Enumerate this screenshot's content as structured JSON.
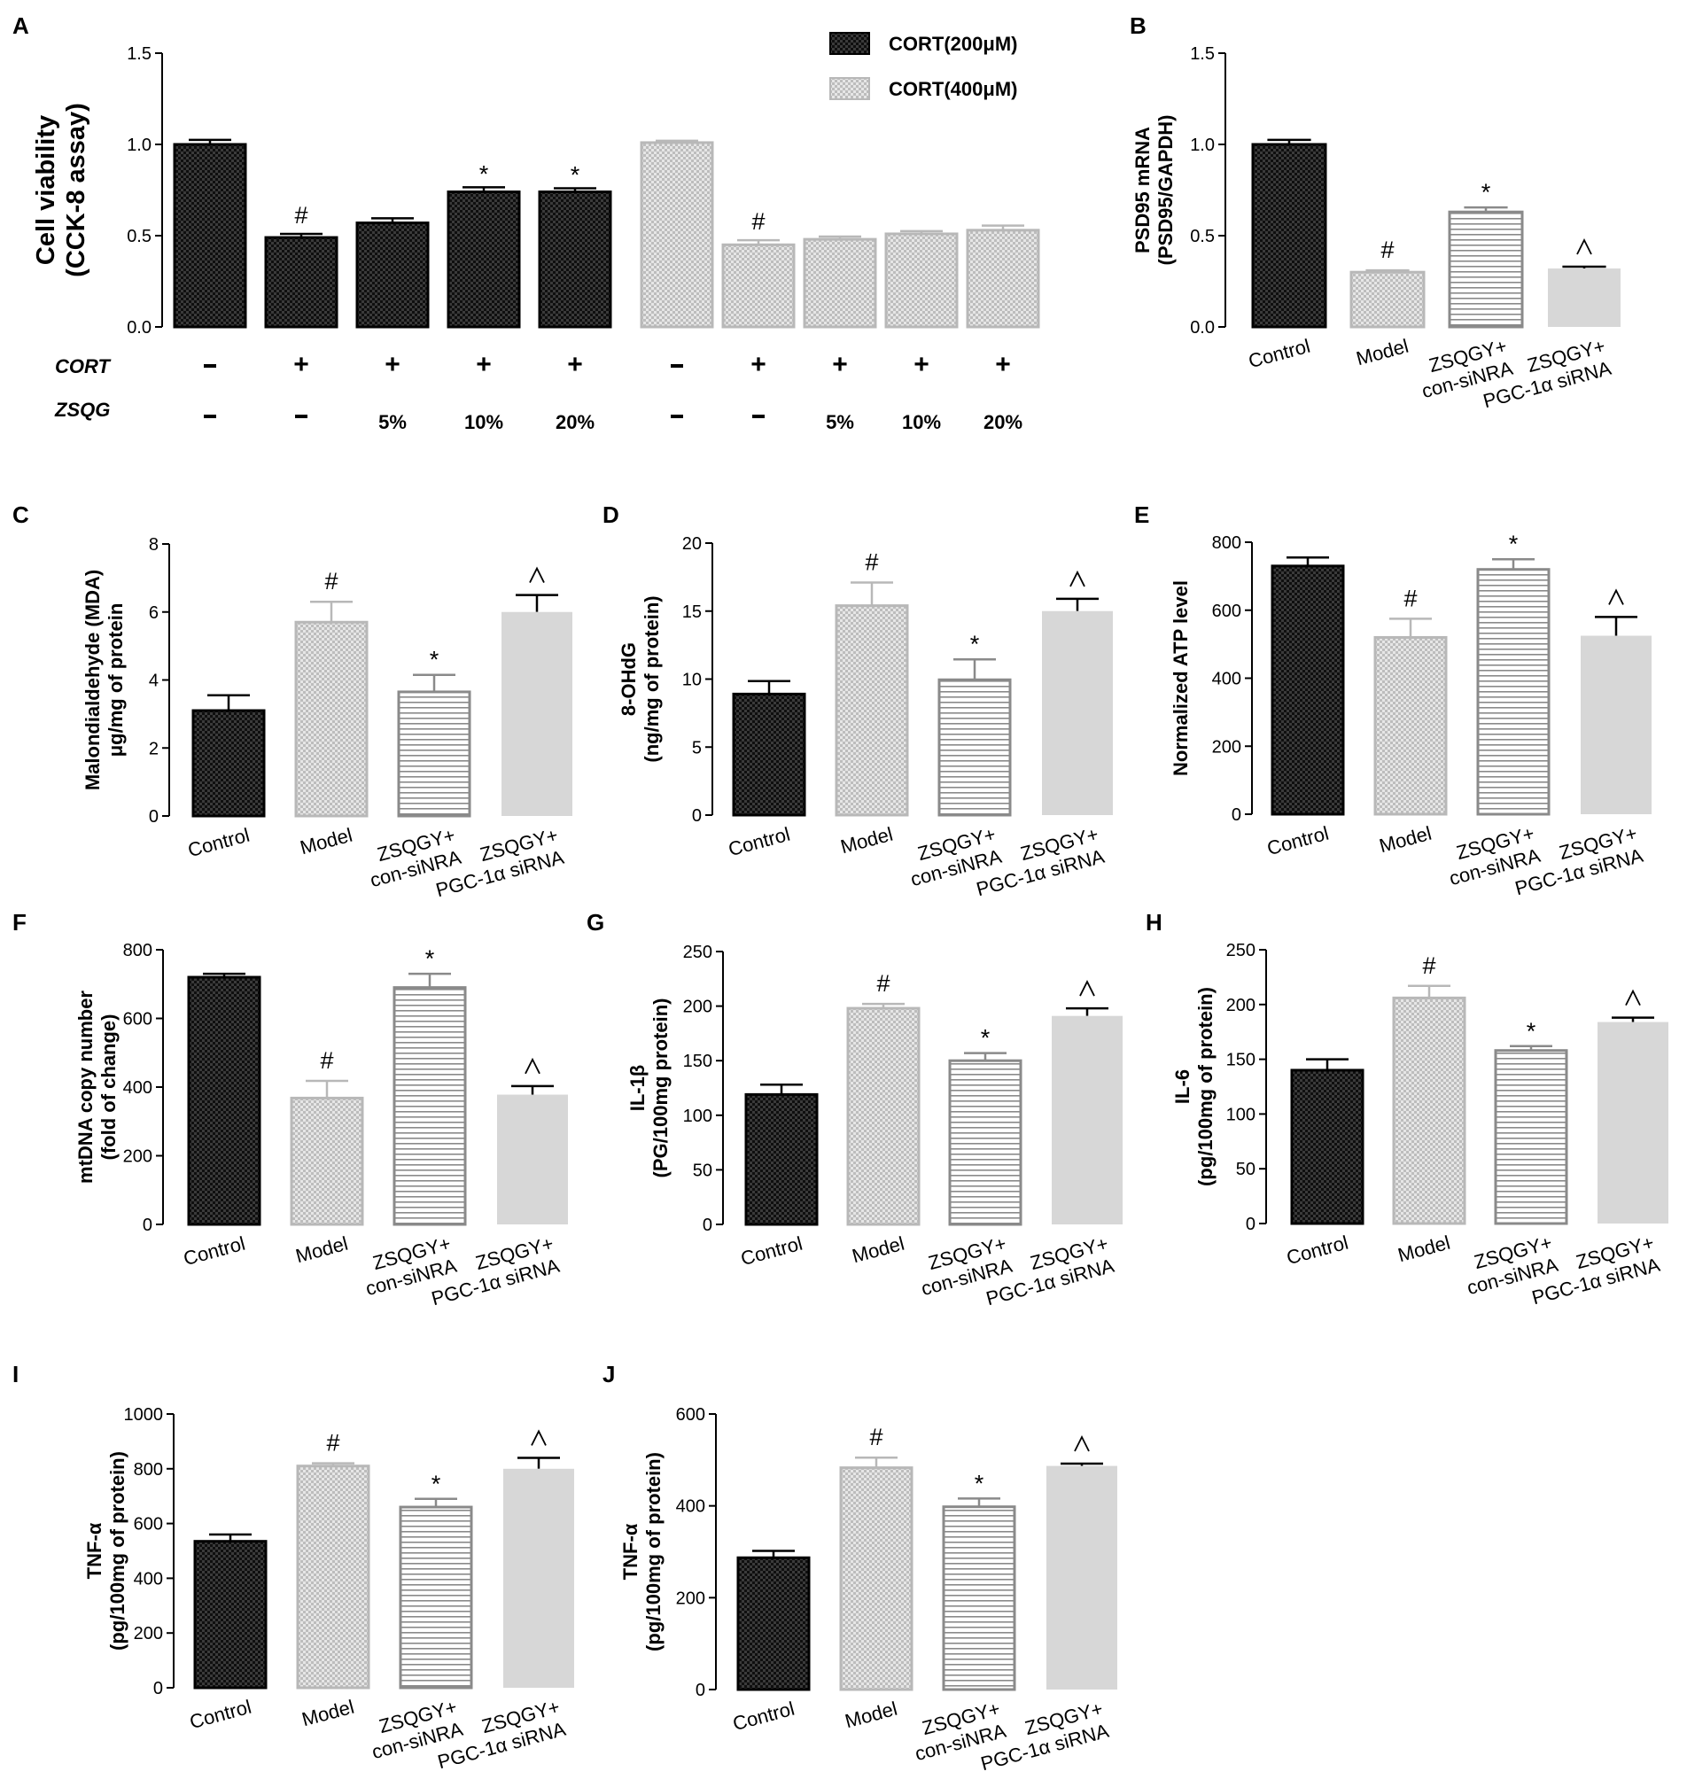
{
  "figure": {
    "caption": ""
  },
  "chart_data": [
    {
      "panel": "A",
      "type": "bar",
      "ylabel": "Cell viability\n(CCK-8 assay)",
      "ylim": [
        0,
        1.5
      ],
      "yticks": [
        "0.0",
        "0.5",
        "1.0",
        "1.5"
      ],
      "legend": [
        "CORT(200μM)",
        "CORT(400μM)"
      ],
      "row_labels": [
        "CORT",
        "ZSQG"
      ],
      "groups": [
        {
          "name": "CORT(200μM)",
          "style": "dark",
          "values": [
            1.0,
            0.49,
            0.57,
            0.74,
            0.74
          ],
          "errors": [
            0.025,
            0.02,
            0.025,
            0.025,
            0.02
          ],
          "annotations": [
            "",
            "#",
            "",
            "*",
            "*"
          ],
          "cort": [
            "-",
            "+",
            "+",
            "+",
            "+"
          ],
          "zsqg": [
            "-",
            "-",
            "5%",
            "10%",
            "20%"
          ]
        },
        {
          "name": "CORT(400μM)",
          "style": "light",
          "values": [
            1.01,
            0.45,
            0.48,
            0.51,
            0.53
          ],
          "errors": [
            0.01,
            0.025,
            0.015,
            0.015,
            0.025
          ],
          "annotations": [
            "",
            "#",
            "",
            "",
            ""
          ],
          "cort": [
            "-",
            "+",
            "+",
            "+",
            "+"
          ],
          "zsqg": [
            "-",
            "-",
            "5%",
            "10%",
            "20%"
          ]
        }
      ]
    },
    {
      "panel": "B",
      "type": "bar",
      "ylabel": "PSD95 mRNA\n(PSD95/GAPDH)",
      "ylim": [
        0,
        1.5
      ],
      "yticks": [
        "0.0",
        "0.5",
        "1.0",
        "1.5"
      ],
      "categories": [
        "Control",
        "Model",
        "ZSQGY+\ncon-siNRA",
        "ZSQGY+\nPGC-1α siRNA"
      ],
      "values": [
        1.0,
        0.3,
        0.63,
        0.32
      ],
      "errors": [
        0.025,
        0.01,
        0.025,
        0.01
      ],
      "annotations": [
        "",
        "#",
        "*",
        "^"
      ]
    },
    {
      "panel": "C",
      "type": "bar",
      "ylabel": "Malondialdehyde  (MDA)\nμg/mg of protein",
      "ylim": [
        0,
        8
      ],
      "yticks": [
        "0",
        "2",
        "4",
        "6",
        "8"
      ],
      "categories": [
        "Control",
        "Model",
        "ZSQGY+\ncon-siNRA",
        "ZSQGY+\nPGC-1α siRNA"
      ],
      "values": [
        3.1,
        5.7,
        3.65,
        6.0
      ],
      "errors": [
        0.45,
        0.6,
        0.5,
        0.5
      ],
      "annotations": [
        "",
        "#",
        "*",
        "^"
      ]
    },
    {
      "panel": "D",
      "type": "bar",
      "ylabel": "8-OHdG\n(ng/mg of protein)",
      "ylim": [
        0,
        20
      ],
      "yticks": [
        "0",
        "5",
        "10",
        "15",
        "20"
      ],
      "categories": [
        "Control",
        "Model",
        "ZSQGY+\ncon-siNRA",
        "ZSQGY+\nPGC-1α siRNA"
      ],
      "values": [
        8.9,
        15.4,
        9.95,
        15.0
      ],
      "errors": [
        0.95,
        1.7,
        1.5,
        0.9
      ],
      "annotations": [
        "",
        "#",
        "*",
        "^"
      ]
    },
    {
      "panel": "E",
      "type": "bar",
      "ylabel": "Normalized ATP level",
      "ylim": [
        0,
        800
      ],
      "yticks": [
        "0",
        "200",
        "400",
        "600",
        "800"
      ],
      "categories": [
        "Control",
        "Model",
        "ZSQGY+\ncon-siNRA",
        "ZSQGY+\nPGC-1α siRNA"
      ],
      "values": [
        730,
        520,
        720,
        525
      ],
      "errors": [
        25,
        55,
        30,
        55
      ],
      "annotations": [
        "",
        "#",
        "*",
        "^"
      ]
    },
    {
      "panel": "F",
      "type": "bar",
      "ylabel": "mtDNA copy number\n(fold of change)",
      "ylim": [
        0,
        800
      ],
      "yticks": [
        "0",
        "200",
        "400",
        "600",
        "800"
      ],
      "categories": [
        "Control",
        "Model",
        "ZSQGY+\ncon-siNRA",
        "ZSQGY+\nPGC-1α siRNA"
      ],
      "values": [
        720,
        368,
        690,
        378
      ],
      "errors": [
        10,
        50,
        40,
        25
      ],
      "annotations": [
        "",
        "#",
        "*",
        "^"
      ]
    },
    {
      "panel": "G",
      "type": "bar",
      "ylabel": "IL-1β\n(PG/100mg protein)",
      "ylim": [
        0,
        250
      ],
      "yticks": [
        "0",
        "50",
        "100",
        "150",
        "200",
        "250"
      ],
      "categories": [
        "Control",
        "Model",
        "ZSQGY+\ncon-siNRA",
        "ZSQGY+\nPGC-1α siRNA"
      ],
      "values": [
        119,
        198,
        150,
        191
      ],
      "errors": [
        9,
        4,
        7,
        7
      ],
      "annotations": [
        "",
        "#",
        "*",
        "^"
      ]
    },
    {
      "panel": "H",
      "type": "bar",
      "ylabel": "IL-6\n(pg/100mg of protein)",
      "ylim": [
        0,
        250
      ],
      "yticks": [
        "0",
        "50",
        "100",
        "150",
        "200",
        "250"
      ],
      "categories": [
        "Control",
        "Model",
        "ZSQGY+\ncon-siNRA",
        "ZSQGY+\nPGC-1α siRNA"
      ],
      "values": [
        140,
        206,
        158,
        184
      ],
      "errors": [
        10,
        11,
        4,
        4
      ],
      "annotations": [
        "",
        "#",
        "*",
        "^"
      ]
    },
    {
      "panel": "I",
      "type": "bar",
      "ylabel": "TNF-α\n(pg/100mg of protein)",
      "ylim": [
        0,
        1000
      ],
      "yticks": [
        "0",
        "200",
        "400",
        "600",
        "800",
        "1000"
      ],
      "categories": [
        "Control",
        "Model",
        "ZSQGY+\ncon-siNRA",
        "ZSQGY+\nPGC-1α siRNA"
      ],
      "values": [
        535,
        810,
        660,
        800
      ],
      "errors": [
        25,
        10,
        30,
        40
      ],
      "annotations": [
        "",
        "#",
        "*",
        "^"
      ]
    },
    {
      "panel": "J",
      "type": "bar",
      "ylabel": "TNF-α\n(pg/100mg of protein)",
      "ylim": [
        0,
        600
      ],
      "yticks": [
        "0",
        "200",
        "400",
        "600"
      ],
      "categories": [
        "Control",
        "Model",
        "ZSQGY+\ncon-siNRA",
        "ZSQGY+\nPGC-1α siRNA"
      ],
      "values": [
        287,
        483,
        398,
        487
      ],
      "errors": [
        15,
        22,
        18,
        5
      ],
      "annotations": [
        "",
        "#",
        "*",
        "^"
      ]
    }
  ]
}
